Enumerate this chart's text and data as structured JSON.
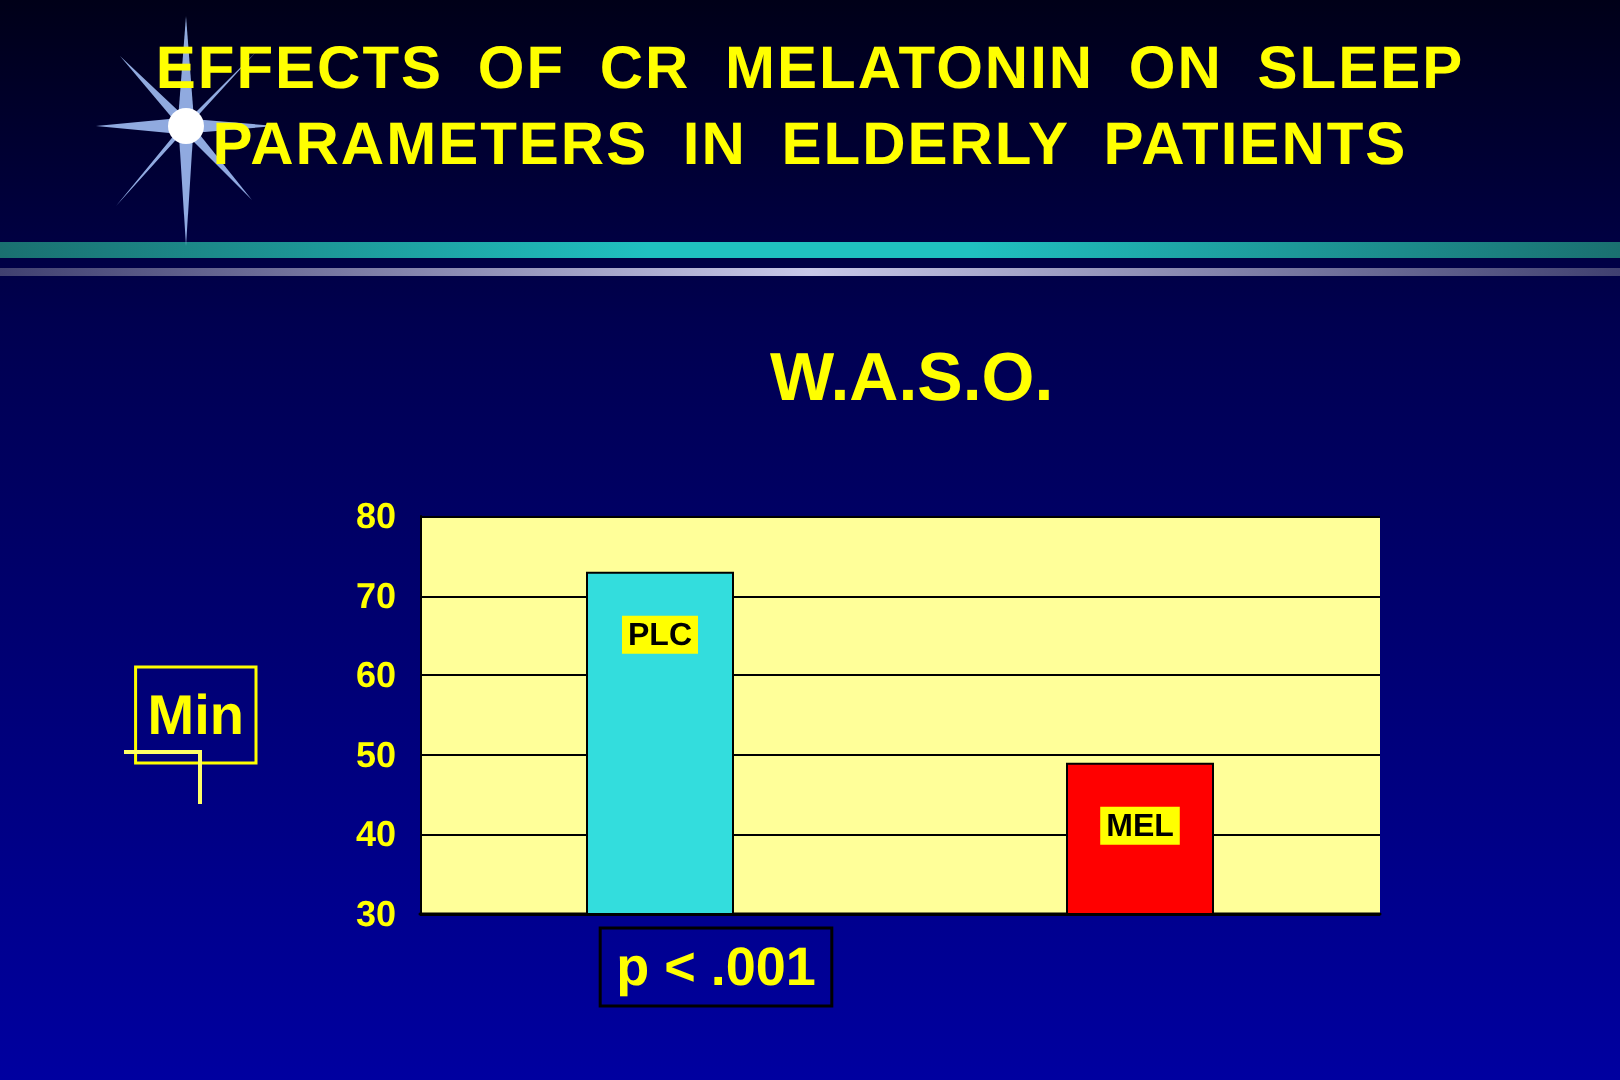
{
  "chart_data": {
    "type": "bar",
    "title": "EFFECTS OF CR MELATONIN ON SLEEP PARAMETERS IN ELDERLY PATIENTS",
    "subtitle": "W.A.S.O.",
    "ylabel": "Min",
    "categories": [
      "PLC",
      "MEL"
    ],
    "values": [
      73,
      49
    ],
    "colors": [
      "#33dddd",
      "#ff0000"
    ],
    "ylim": [
      30,
      80
    ],
    "yticks": [
      30,
      40,
      50,
      60,
      70,
      80
    ],
    "grid": "y",
    "tick_labels": "y",
    "annotations": [
      "p < .001"
    ]
  }
}
